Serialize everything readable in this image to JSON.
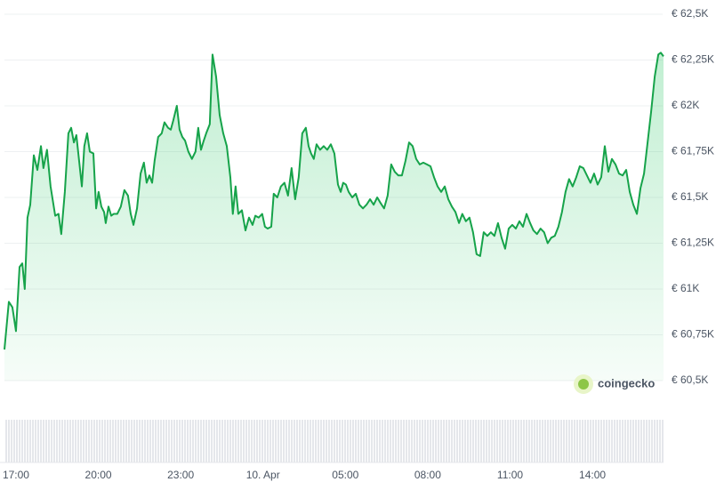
{
  "chart_data": {
    "type": "line",
    "color": "#16a34a",
    "watermark": "coingecko",
    "ylim": [
      60500,
      62500
    ],
    "yticks": [
      {
        "value": 60500,
        "label": "€ 60,5K"
      },
      {
        "value": 60750,
        "label": "€ 60,75K"
      },
      {
        "value": 61000,
        "label": "€ 61K"
      },
      {
        "value": 61250,
        "label": "€ 61,25K"
      },
      {
        "value": 61500,
        "label": "€ 61,5K"
      },
      {
        "value": 61750,
        "label": "€ 61,75K"
      },
      {
        "value": 62000,
        "label": "€ 62K"
      },
      {
        "value": 62250,
        "label": "€ 62,25K"
      },
      {
        "value": 62500,
        "label": "€ 62,5K"
      }
    ],
    "grid": true,
    "xlim": [
      16.58,
      40.59
    ],
    "xticks": [
      {
        "value": 17,
        "label": "17:00"
      },
      {
        "value": 20,
        "label": "20:00"
      },
      {
        "value": 23,
        "label": "23:00"
      },
      {
        "value": 26,
        "label": "10. Apr"
      },
      {
        "value": 29,
        "label": "05:00"
      },
      {
        "value": 32,
        "label": "08:00"
      },
      {
        "value": 35,
        "label": "11:00"
      },
      {
        "value": 38,
        "label": "14:00"
      }
    ],
    "x": [
      16.58,
      16.74,
      16.87,
      17.0,
      17.13,
      17.23,
      17.32,
      17.42,
      17.52,
      17.65,
      17.78,
      17.91,
      18.0,
      18.13,
      18.26,
      18.43,
      18.55,
      18.65,
      18.78,
      18.91,
      19.01,
      19.11,
      19.2,
      19.3,
      19.4,
      19.49,
      19.59,
      19.69,
      19.82,
      19.92,
      20.01,
      20.11,
      20.21,
      20.27,
      20.37,
      20.47,
      20.56,
      20.69,
      20.82,
      20.95,
      21.08,
      21.18,
      21.28,
      21.41,
      21.54,
      21.66,
      21.76,
      21.86,
      21.96,
      22.05,
      22.18,
      22.31,
      22.41,
      22.54,
      22.64,
      22.73,
      22.86,
      22.96,
      23.06,
      23.16,
      23.28,
      23.41,
      23.54,
      23.64,
      23.74,
      23.84,
      23.93,
      24.06,
      24.16,
      24.29,
      24.42,
      24.55,
      24.68,
      24.81,
      24.9,
      25.0,
      25.1,
      25.23,
      25.36,
      25.49,
      25.62,
      25.72,
      25.84,
      25.97,
      26.07,
      26.17,
      26.3,
      26.39,
      26.52,
      26.65,
      26.78,
      26.91,
      27.04,
      27.17,
      27.3,
      27.43,
      27.56,
      27.66,
      27.75,
      27.85,
      27.95,
      28.08,
      28.21,
      28.34,
      28.47,
      28.6,
      28.73,
      28.83,
      28.92,
      29.02,
      29.12,
      29.25,
      29.38,
      29.51,
      29.64,
      29.77,
      29.9,
      30.03,
      30.16,
      30.28,
      30.41,
      30.54,
      30.67,
      30.8,
      30.93,
      31.06,
      31.19,
      31.32,
      31.45,
      31.58,
      31.71,
      31.84,
      31.97,
      32.1,
      32.23,
      32.36,
      32.49,
      32.62,
      32.75,
      32.88,
      33.01,
      33.14,
      33.26,
      33.39,
      33.52,
      33.65,
      33.78,
      33.91,
      34.04,
      34.17,
      34.3,
      34.43,
      34.56,
      34.69,
      34.82,
      34.95,
      35.08,
      35.21,
      35.34,
      35.47,
      35.6,
      35.73,
      35.85,
      35.98,
      36.11,
      36.24,
      36.37,
      36.5,
      36.63,
      36.76,
      36.89,
      37.02,
      37.15,
      37.28,
      37.41,
      37.54,
      37.67,
      37.8,
      37.93,
      38.06,
      38.19,
      38.32,
      38.45,
      38.58,
      38.71,
      38.84,
      38.97,
      39.1,
      39.23,
      39.36,
      39.49,
      39.62,
      39.75,
      39.88,
      40.01,
      40.14,
      40.27,
      40.4,
      40.49,
      40.59
    ],
    "values": [
      60670,
      60930,
      60900,
      60770,
      61120,
      61140,
      61000,
      61390,
      61460,
      61730,
      61650,
      61780,
      61660,
      61760,
      61560,
      61400,
      61410,
      61300,
      61530,
      61850,
      61880,
      61800,
      61840,
      61700,
      61560,
      61780,
      61850,
      61750,
      61740,
      61440,
      61530,
      61450,
      61420,
      61360,
      61450,
      61400,
      61410,
      61410,
      61450,
      61540,
      61510,
      61410,
      61350,
      61440,
      61630,
      61690,
      61580,
      61620,
      61580,
      61700,
      61830,
      61850,
      61910,
      61880,
      61870,
      61920,
      62000,
      61870,
      61830,
      61810,
      61750,
      61710,
      61750,
      61880,
      61760,
      61810,
      61850,
      61900,
      62280,
      62160,
      61950,
      61850,
      61780,
      61610,
      61410,
      61560,
      61410,
      61430,
      61320,
      61390,
      61350,
      61400,
      61390,
      61410,
      61340,
      61330,
      61340,
      61520,
      61500,
      61560,
      61580,
      61510,
      61660,
      61490,
      61610,
      61850,
      61880,
      61780,
      61740,
      61710,
      61790,
      61760,
      61780,
      61760,
      61790,
      61740,
      61570,
      61530,
      61580,
      61570,
      61530,
      61500,
      61520,
      61460,
      61440,
      61460,
      61490,
      61460,
      61500,
      61470,
      61440,
      61510,
      61680,
      61640,
      61620,
      61620,
      61700,
      61800,
      61780,
      61710,
      61680,
      61690,
      61680,
      61670,
      61610,
      61560,
      61530,
      61560,
      61490,
      61450,
      61420,
      61360,
      61410,
      61370,
      61390,
      61310,
      61190,
      61180,
      61310,
      61290,
      61310,
      61290,
      61360,
      61280,
      61220,
      61330,
      61350,
      61330,
      61370,
      61340,
      61410,
      61360,
      61320,
      61300,
      61330,
      61310,
      61250,
      61280,
      61290,
      61340,
      61420,
      61530,
      61600,
      61560,
      61610,
      61670,
      61660,
      61620,
      61580,
      61630,
      61570,
      61610,
      61780,
      61640,
      61710,
      61680,
      61630,
      61620,
      61650,
      61530,
      61460,
      61410,
      61550,
      61630,
      61800,
      61970,
      62160,
      62280,
      62290,
      62270
    ]
  }
}
